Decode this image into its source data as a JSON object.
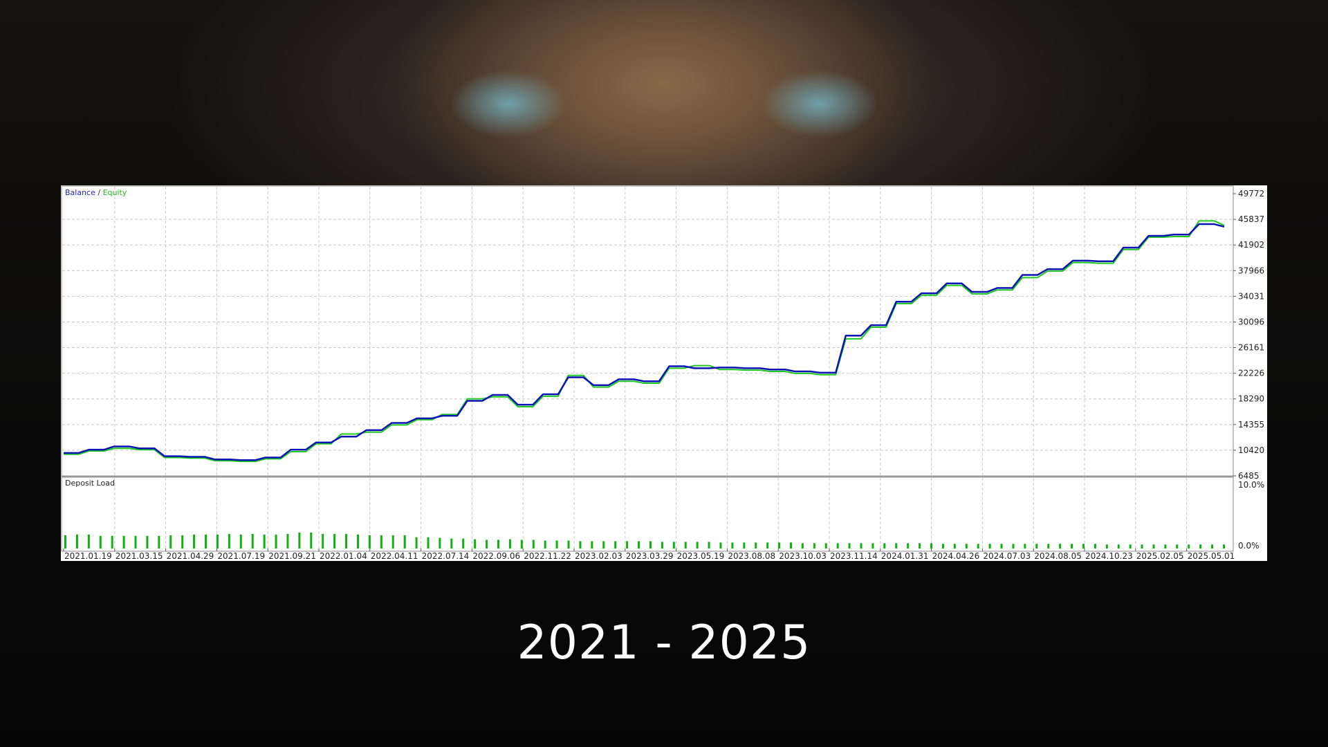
{
  "caption": "2021 - 2025",
  "colors": {
    "balance": "#0a14b4",
    "equity": "#1ec81e",
    "deposit_load": "#10b010",
    "grid": "#c8c8c8"
  },
  "chart_data": [
    {
      "type": "line",
      "legend": {
        "balance": "Balance",
        "separator": "/",
        "equity": "Equity",
        "placement": "top-left"
      },
      "ylim": [
        6485,
        49772
      ],
      "yticks": [
        "49772",
        "45837",
        "41902",
        "37966",
        "34031",
        "30096",
        "26161",
        "22226",
        "18290",
        "14355",
        "10420",
        "6485"
      ],
      "x_ticks": [
        "2021.01.19",
        "2021.03.15",
        "2021.04.29",
        "2021.07.19",
        "2021.09.21",
        "2022.01.04",
        "2022.04.11",
        "2022.07.14",
        "2022.09.06",
        "2022.11.22",
        "2023.02.03",
        "2023.03.29",
        "2023.05.19",
        "2023.08.08",
        "2023.10.03",
        "2023.11.14",
        "2024.01.31",
        "2024.04.26",
        "2024.07.03",
        "2024.08.05",
        "2024.10.23",
        "2025.02.05",
        "2025.05.01"
      ],
      "grid": true,
      "series": [
        {
          "name": "Balance",
          "values": [
            10000,
            10500,
            11000,
            10700,
            9500,
            9400,
            9000,
            8900,
            9300,
            10500,
            11600,
            12500,
            13500,
            14600,
            15300,
            15700,
            18000,
            18900,
            17400,
            19000,
            21600,
            20400,
            21300,
            21000,
            23300,
            23000,
            23100,
            23000,
            22800,
            22500,
            22300,
            28000,
            29600,
            33200,
            34500,
            36000,
            34700,
            35300,
            37300,
            38200,
            39500,
            39400,
            41500,
            43300,
            43500,
            45100,
            44700
          ]
        },
        {
          "name": "Equity",
          "values": [
            9800,
            10300,
            10700,
            10500,
            9300,
            9200,
            8800,
            8700,
            9100,
            10200,
            11400,
            12900,
            13200,
            14300,
            15100,
            15900,
            18300,
            18600,
            17100,
            18700,
            21900,
            20100,
            21000,
            20700,
            23000,
            23400,
            22800,
            22700,
            22500,
            22200,
            22000,
            27500,
            29300,
            32900,
            34200,
            35700,
            34400,
            35000,
            36900,
            37900,
            39200,
            39100,
            41200,
            43100,
            43200,
            45600,
            44900
          ]
        }
      ]
    },
    {
      "type": "bar",
      "title": "Deposit Load",
      "yticks": [
        "10.0%",
        "0.0%"
      ],
      "ylim": [
        0,
        10
      ],
      "values": [
        2.0,
        2.1,
        2.1,
        1.9,
        1.9,
        1.9,
        1.9,
        1.9,
        1.9,
        2.0,
        2.0,
        2.1,
        2.1,
        2.1,
        2.2,
        2.1,
        2.2,
        2.1,
        2.1,
        2.2,
        2.4,
        2.4,
        2.2,
        2.2,
        2.2,
        2.1,
        2.0,
        2.0,
        2.0,
        2.0,
        1.7,
        1.7,
        1.6,
        1.5,
        1.5,
        1.4,
        1.3,
        1.3,
        1.4,
        1.3,
        1.3,
        1.2,
        1.2,
        1.2,
        1.1,
        1.1,
        1.1,
        1.1,
        1.1,
        1.1,
        1.1,
        1.0,
        1.0,
        1.0,
        1.0,
        1.0,
        0.9,
        0.9,
        0.9,
        0.9,
        0.9,
        0.9,
        0.9,
        0.8,
        0.8,
        0.8,
        0.8,
        0.8,
        0.8,
        0.8,
        0.8,
        0.8,
        0.8,
        0.8,
        0.8,
        0.7,
        0.7,
        0.7,
        0.7,
        0.7,
        0.7,
        0.7,
        0.7,
        0.7,
        0.7,
        0.7,
        0.7,
        0.7,
        0.7,
        0.6,
        0.6,
        0.6,
        0.6,
        0.6,
        0.6,
        0.6,
        0.6,
        0.6,
        0.6,
        0.6
      ]
    }
  ]
}
